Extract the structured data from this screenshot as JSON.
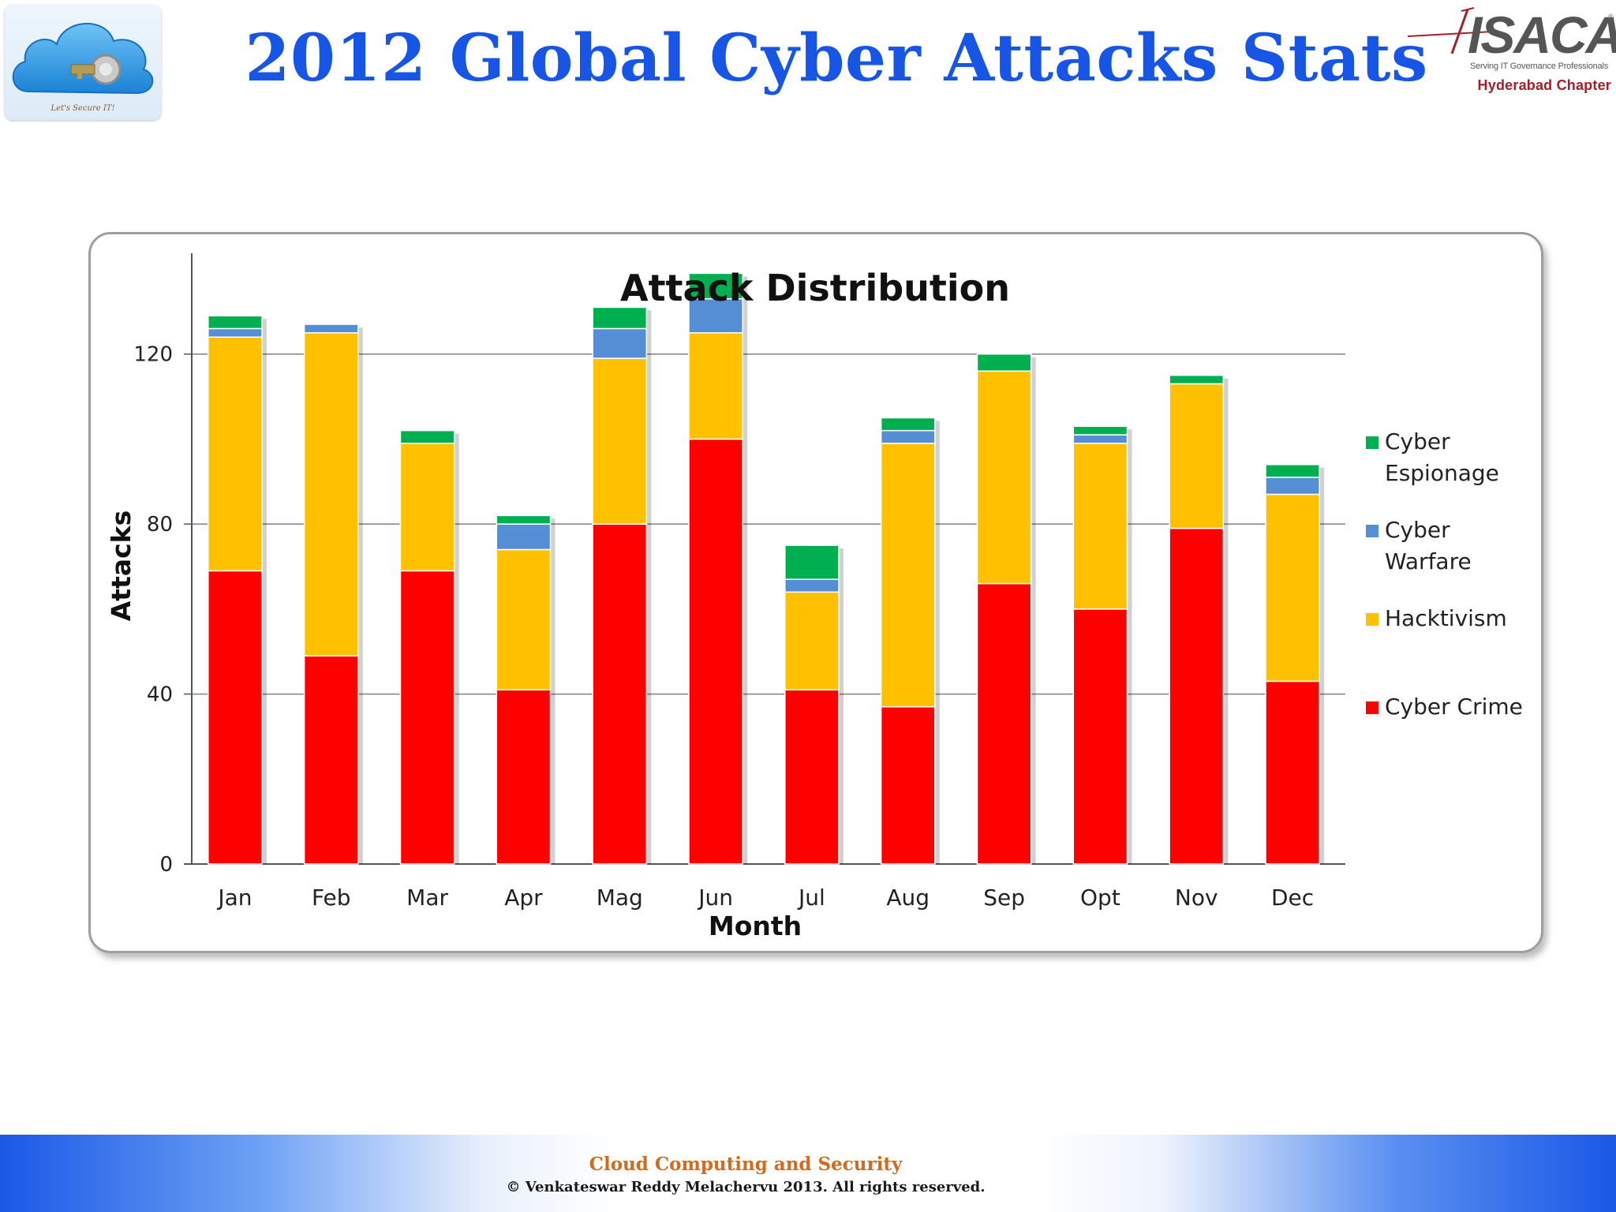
{
  "slide": {
    "title": "2012 Global Cyber Attacks Stats",
    "left_logo": {
      "tagline": "Let's Secure IT!",
      "icon": "cloud-key-icon"
    },
    "right_logo": {
      "wordmark": "ISACA",
      "registered": "®",
      "tagline": "Serving IT Governance Professionals",
      "chapter": "Hyderabad Chapter"
    },
    "footer": {
      "title": "Cloud Computing and Security",
      "copyright": "©  Venkateswar Reddy Melachervu 2013. All rights reserved."
    }
  },
  "chart_data": {
    "type": "bar",
    "stacked": true,
    "title": "Attack Distribution",
    "xlabel": "Month",
    "ylabel": "Attacks",
    "ylim": [
      0,
      140
    ],
    "yticks": [
      "0",
      "40",
      "80",
      "120"
    ],
    "grid": true,
    "legend_position": "right",
    "categories": [
      "Jan",
      "Feb",
      "Mar",
      "Apr",
      "Mag",
      "Jun",
      "Jul",
      "Aug",
      "Sep",
      "Opt",
      "Nov",
      "Dec"
    ],
    "series": [
      {
        "name": "Cyber Crime",
        "color": "#ff0000",
        "values": [
          69,
          49,
          69,
          41,
          80,
          100,
          41,
          37,
          66,
          60,
          79,
          43
        ]
      },
      {
        "name": "Hacktivism",
        "color": "#ffc000",
        "values": [
          55,
          76,
          30,
          33,
          39,
          25,
          23,
          62,
          50,
          39,
          34,
          44
        ]
      },
      {
        "name": "Cyber Warfare",
        "color": "#558ed5",
        "values": [
          2,
          2,
          0,
          6,
          7,
          8,
          3,
          3,
          0,
          2,
          0,
          4
        ]
      },
      {
        "name": "Cyber Espionage",
        "color": "#00b050",
        "values": [
          3,
          0,
          3,
          2,
          5,
          6,
          8,
          3,
          4,
          2,
          2,
          3
        ]
      }
    ],
    "legend_order": [
      "Cyber Espionage",
      "Cyber Warfare",
      "Hacktivism",
      "Cyber Crime"
    ],
    "legend_labels": {
      "Cyber Espionage": [
        "Cyber",
        "Espionage"
      ],
      "Cyber Warfare": [
        "Cyber",
        "Warfare"
      ],
      "Hacktivism": [
        "Hacktivism"
      ],
      "Cyber Crime": [
        "Cyber Crime"
      ]
    }
  }
}
